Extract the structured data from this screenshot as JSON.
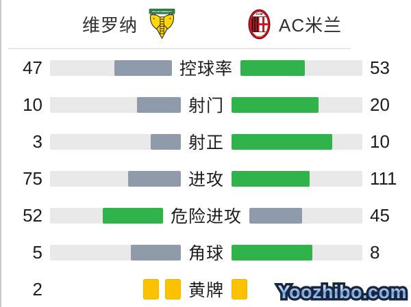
{
  "colors": {
    "green": "#2fb34a",
    "gray": "#8f9aab",
    "track": "#e9e9e9",
    "card_yellow": "#fcc200"
  },
  "header": {
    "home_team": "维罗纳",
    "away_team": "AC米兰",
    "home_logo": {
      "banner_text": "HELLAS VERONA FC"
    },
    "away_logo": {
      "top_text": "ACM",
      "bottom_text": "1899"
    }
  },
  "stats": {
    "rows": [
      {
        "type": "bar",
        "label": "控球率",
        "home": 47,
        "away": 53,
        "home_display": "47",
        "away_display": "53"
      },
      {
        "type": "bar",
        "label": "射门",
        "home": 10,
        "away": 20,
        "home_display": "10",
        "away_display": "20"
      },
      {
        "type": "bar",
        "label": "射正",
        "home": 3,
        "away": 10,
        "home_display": "3",
        "away_display": "10"
      },
      {
        "type": "bar",
        "label": "进攻",
        "home": 75,
        "away": 111,
        "home_display": "75",
        "away_display": "111"
      },
      {
        "type": "bar",
        "label": "危险进攻",
        "home": 52,
        "away": 45,
        "home_display": "52",
        "away_display": "45"
      },
      {
        "type": "bar",
        "label": "角球",
        "home": 5,
        "away": 8,
        "home_display": "5",
        "away_display": "8"
      },
      {
        "type": "cards",
        "label": "黄牌",
        "home_cards": 2,
        "away_cards": 1,
        "home_display": "2",
        "away_display": ""
      }
    ]
  },
  "watermark": {
    "text": "Yoozhibo.com"
  }
}
